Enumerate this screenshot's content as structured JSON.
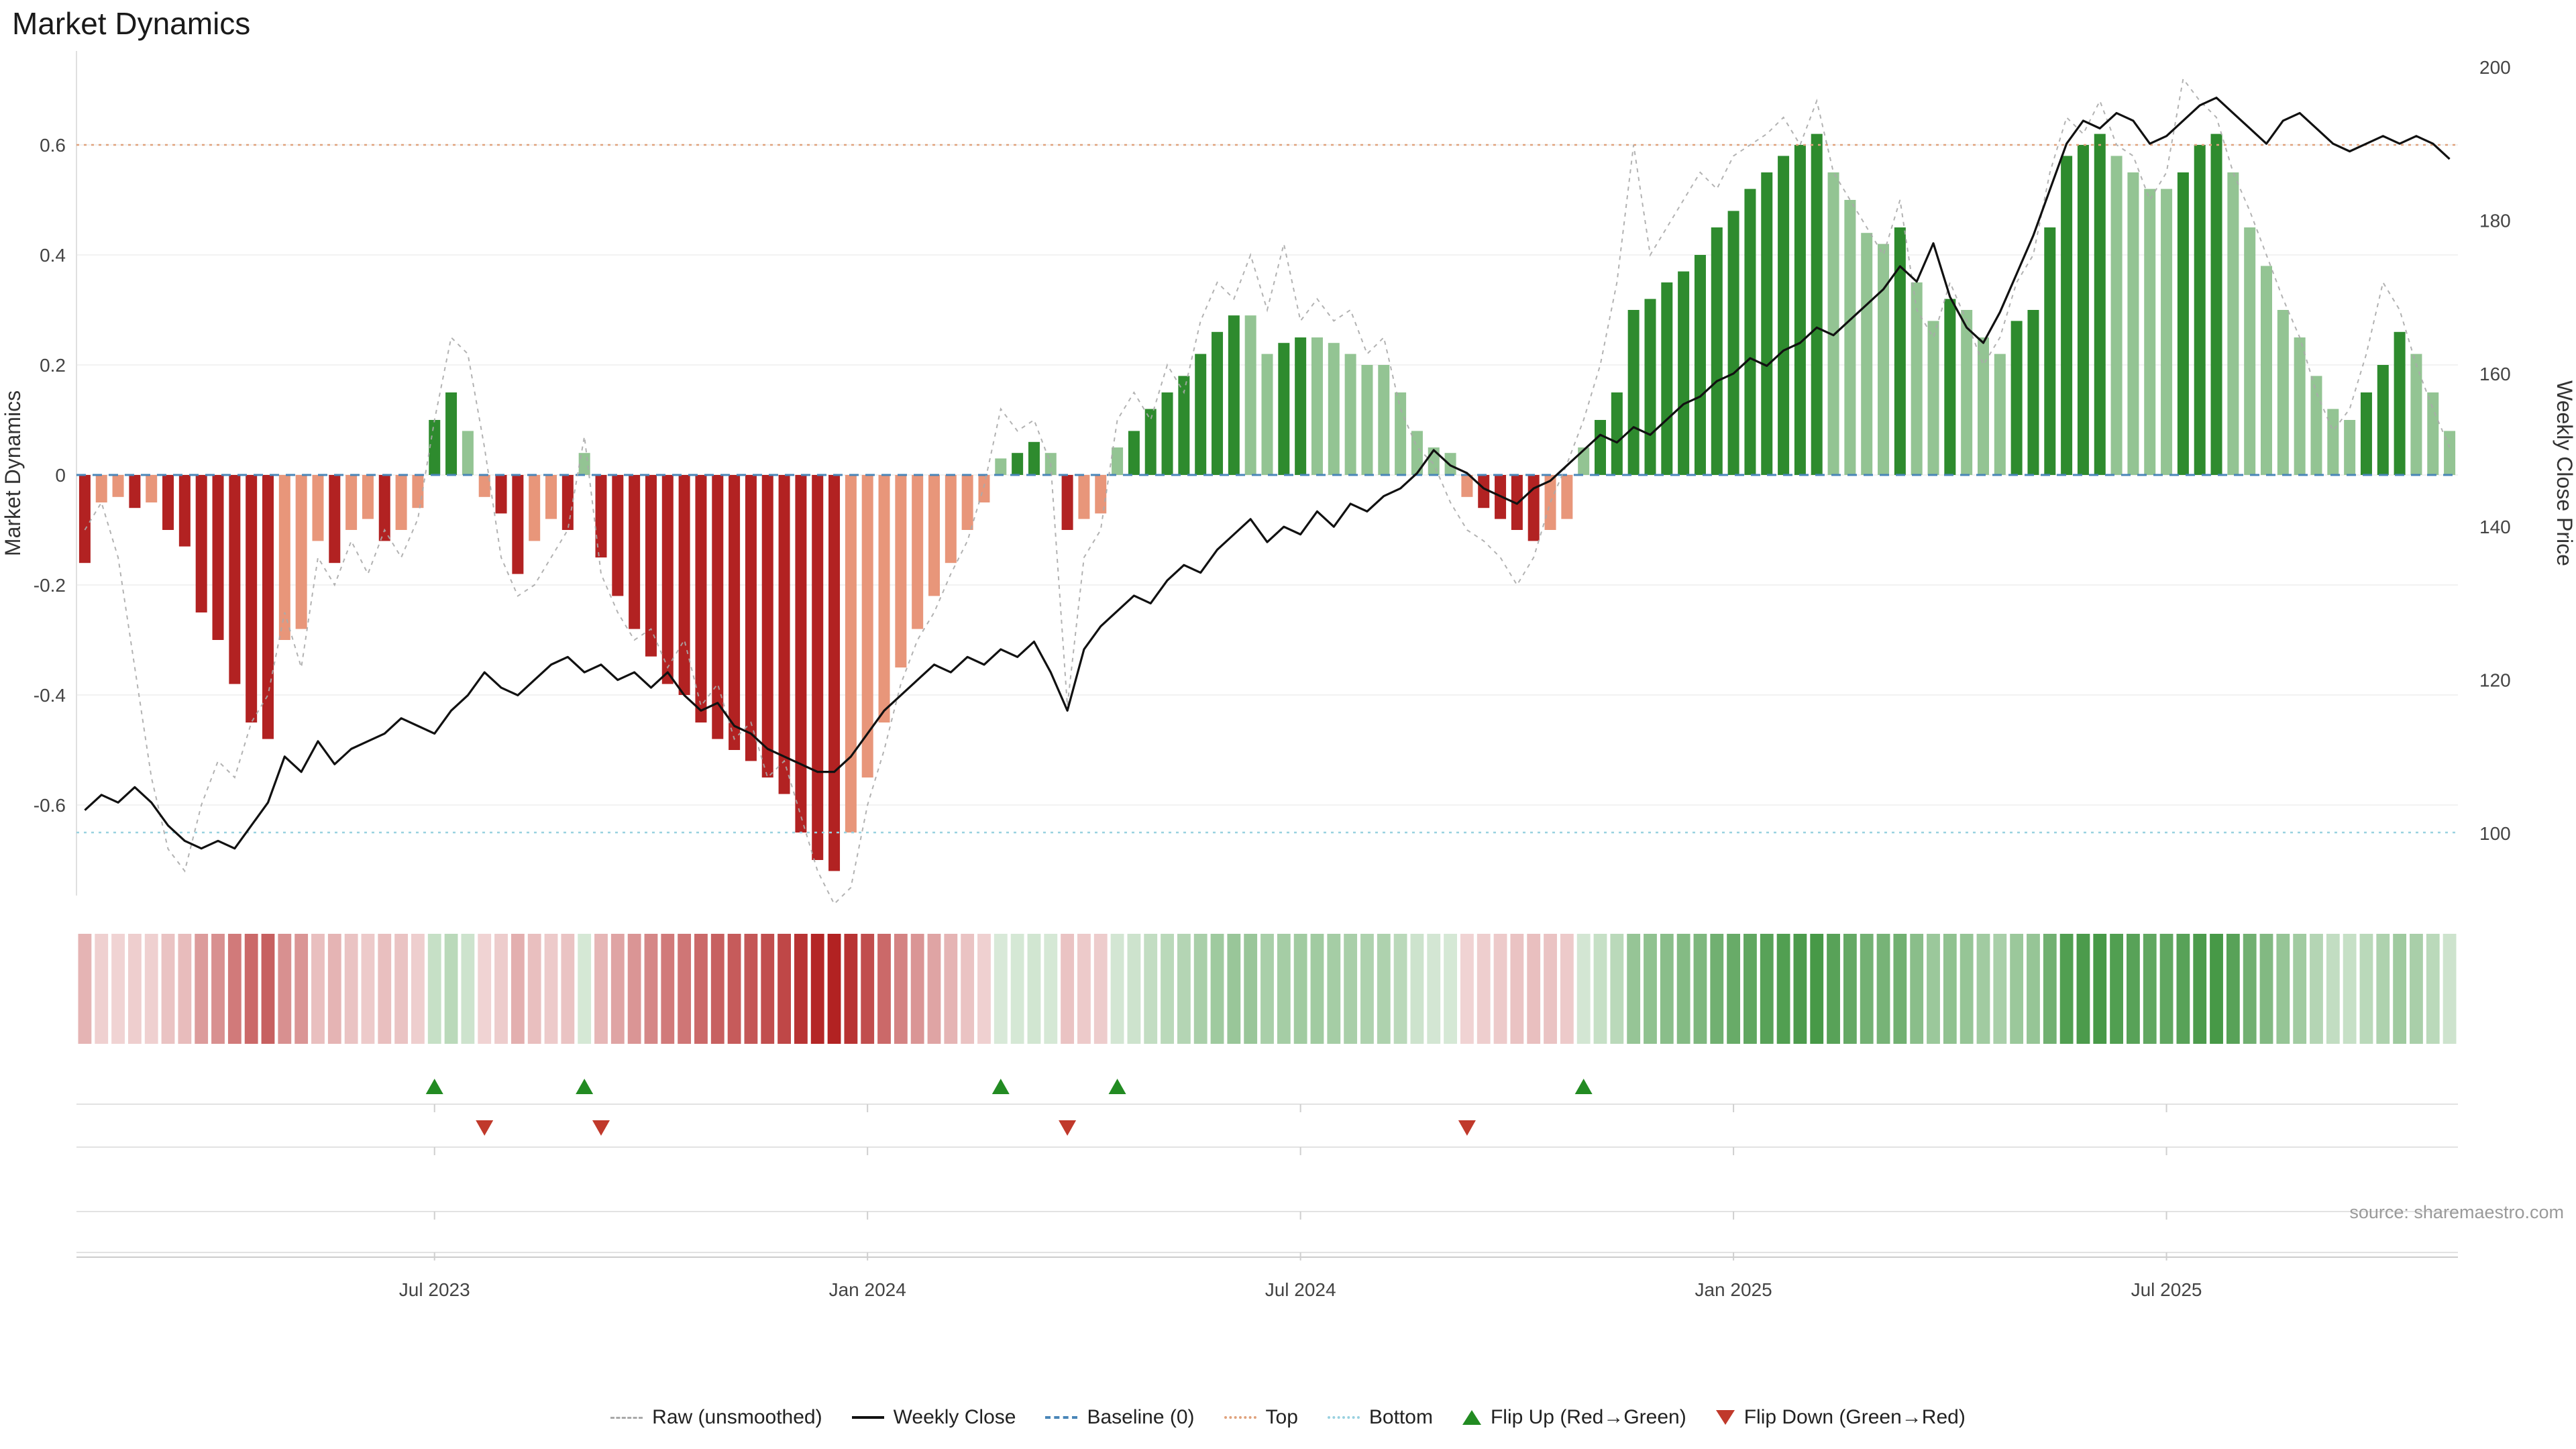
{
  "title": "Market Dynamics",
  "source": "source: sharemaestro.com",
  "axes": {
    "left_label": "Market Dynamics",
    "right_label": "Weekly Close Price",
    "left_tick_labels": [
      "0.6",
      "0.4",
      "0.2",
      "0",
      "-0.2",
      "-0.4",
      "-0.6"
    ],
    "left_tick_values": [
      0.6,
      0.4,
      0.2,
      0,
      -0.2,
      -0.4,
      -0.6
    ],
    "right_tick_labels": [
      "200",
      "180",
      "160",
      "140",
      "120",
      "100"
    ],
    "right_tick_values": [
      200,
      180,
      160,
      140,
      120,
      100
    ],
    "x_tick_labels": [
      "Jul 2023",
      "Jan 2024",
      "Jul 2024",
      "Jan 2025",
      "Jul 2025"
    ],
    "x_tick_indices": [
      21,
      47,
      73,
      99,
      125
    ]
  },
  "colors": {
    "bar_dark_red": "#b22222",
    "bar_light_red": "#e8967a",
    "bar_dark_green": "#2e8b2e",
    "bar_light_green": "#93c493",
    "baseline": "#4a86b8",
    "top": "#e0a27c",
    "bottom": "#99d1e0",
    "raw": "#aaaaaa",
    "price": "#111111",
    "flip_up": "#228b22",
    "flip_down": "#c0392b",
    "grid": "#f2f2f2",
    "spine": "#cccccc",
    "marker_row_line": "#e2e2e2",
    "tick_text": "#444444"
  },
  "legend": [
    {
      "label": "Raw (unsmoothed)",
      "swatch": "sw-raw"
    },
    {
      "label": "Weekly Close",
      "swatch": "sw-solid"
    },
    {
      "label": "Baseline (0)",
      "swatch": "sw-dashblue"
    },
    {
      "label": "Top",
      "swatch": "sw-dotorange"
    },
    {
      "label": "Bottom",
      "swatch": "sw-dotcyan"
    },
    {
      "label": "Flip Up (Red→Green)",
      "swatch": "sw-triup"
    },
    {
      "label": "Flip Down (Green→Red)",
      "swatch": "sw-tridown"
    }
  ],
  "chart_data": {
    "type": "bar",
    "title": "Market Dynamics",
    "x_unit": "weekly",
    "n_points": 143,
    "xlabel": "",
    "ylabel_left": "Market Dynamics",
    "ylabel_right": "Weekly Close Price",
    "left_axis_range": [
      -0.77,
      0.77
    ],
    "right_axis_range": [
      92,
      202
    ],
    "grid": true,
    "legend_position": "bottom-center",
    "baselines": {
      "baseline": 0,
      "top": 0.6,
      "bottom": -0.65
    },
    "x_tick_labels": [
      "Jul 2023",
      "Jan 2024",
      "Jul 2024",
      "Jan 2025",
      "Jul 2025"
    ],
    "x_tick_indices": [
      21,
      47,
      73,
      99,
      125
    ],
    "series": [
      {
        "name": "Market Dynamics (bars)",
        "type": "bar",
        "axis": "left",
        "values": [
          -0.16,
          -0.05,
          -0.04,
          -0.06,
          -0.05,
          -0.1,
          -0.13,
          -0.25,
          -0.3,
          -0.38,
          -0.45,
          -0.48,
          -0.3,
          -0.28,
          -0.12,
          -0.16,
          -0.1,
          -0.08,
          -0.12,
          -0.1,
          -0.06,
          0.1,
          0.15,
          0.08,
          -0.04,
          -0.07,
          -0.18,
          -0.12,
          -0.08,
          -0.1,
          0.04,
          -0.15,
          -0.22,
          -0.28,
          -0.33,
          -0.38,
          -0.4,
          -0.45,
          -0.48,
          -0.5,
          -0.52,
          -0.55,
          -0.58,
          -0.65,
          -0.7,
          -0.72,
          -0.65,
          -0.55,
          -0.45,
          -0.35,
          -0.28,
          -0.22,
          -0.16,
          -0.1,
          -0.05,
          0.03,
          0.04,
          0.06,
          0.04,
          -0.1,
          -0.08,
          -0.07,
          0.05,
          0.08,
          0.12,
          0.15,
          0.18,
          0.22,
          0.26,
          0.29,
          0.29,
          0.22,
          0.24,
          0.25,
          0.25,
          0.24,
          0.22,
          0.2,
          0.2,
          0.15,
          0.08,
          0.05,
          0.04,
          -0.04,
          -0.06,
          -0.08,
          -0.1,
          -0.12,
          -0.1,
          -0.08,
          0.05,
          0.1,
          0.15,
          0.3,
          0.32,
          0.35,
          0.37,
          0.4,
          0.45,
          0.48,
          0.52,
          0.55,
          0.58,
          0.6,
          0.62,
          0.55,
          0.5,
          0.44,
          0.42,
          0.45,
          0.35,
          0.28,
          0.32,
          0.3,
          0.25,
          0.22,
          0.28,
          0.3,
          0.45,
          0.58,
          0.6,
          0.62,
          0.58,
          0.55,
          0.52,
          0.52,
          0.55,
          0.6,
          0.62,
          0.55,
          0.45,
          0.38,
          0.3,
          0.25,
          0.18,
          0.12,
          0.1,
          0.15,
          0.2,
          0.26,
          0.22,
          0.15,
          0.08
        ]
      },
      {
        "name": "Raw (unsmoothed)",
        "type": "line",
        "axis": "left",
        "values": [
          -0.1,
          -0.05,
          -0.15,
          -0.35,
          -0.55,
          -0.68,
          -0.72,
          -0.6,
          -0.52,
          -0.55,
          -0.45,
          -0.4,
          -0.25,
          -0.35,
          -0.15,
          -0.2,
          -0.12,
          -0.18,
          -0.1,
          -0.15,
          -0.08,
          0.1,
          0.25,
          0.22,
          0.05,
          -0.15,
          -0.22,
          -0.2,
          -0.15,
          -0.1,
          0.07,
          -0.18,
          -0.25,
          -0.3,
          -0.28,
          -0.35,
          -0.3,
          -0.42,
          -0.38,
          -0.48,
          -0.45,
          -0.55,
          -0.52,
          -0.62,
          -0.72,
          -0.78,
          -0.75,
          -0.6,
          -0.5,
          -0.38,
          -0.3,
          -0.25,
          -0.18,
          -0.12,
          -0.02,
          0.12,
          0.08,
          0.1,
          0.02,
          -0.42,
          -0.15,
          -0.1,
          0.1,
          0.15,
          0.1,
          0.2,
          0.15,
          0.28,
          0.35,
          0.32,
          0.4,
          0.3,
          0.42,
          0.28,
          0.32,
          0.28,
          0.3,
          0.22,
          0.25,
          0.12,
          0.05,
          0.02,
          -0.05,
          -0.1,
          -0.12,
          -0.15,
          -0.2,
          -0.15,
          -0.05,
          0.02,
          0.1,
          0.2,
          0.35,
          0.6,
          0.4,
          0.45,
          0.5,
          0.55,
          0.52,
          0.58,
          0.6,
          0.62,
          0.65,
          0.6,
          0.68,
          0.55,
          0.5,
          0.45,
          0.4,
          0.5,
          0.3,
          0.25,
          0.35,
          0.28,
          0.2,
          0.25,
          0.35,
          0.4,
          0.55,
          0.65,
          0.62,
          0.68,
          0.6,
          0.58,
          0.5,
          0.55,
          0.72,
          0.68,
          0.65,
          0.55,
          0.48,
          0.4,
          0.32,
          0.25,
          0.15,
          0.08,
          0.12,
          0.22,
          0.35,
          0.3,
          0.2,
          0.12,
          0.05
        ]
      },
      {
        "name": "Weekly Close",
        "type": "line",
        "axis": "right",
        "values": [
          103,
          105,
          104,
          106,
          104,
          101,
          99,
          98,
          99,
          98,
          101,
          104,
          110,
          108,
          112,
          109,
          111,
          112,
          113,
          115,
          114,
          113,
          116,
          118,
          121,
          119,
          118,
          120,
          122,
          123,
          121,
          122,
          120,
          121,
          119,
          121,
          118,
          116,
          117,
          114,
          113,
          111,
          110,
          109,
          108,
          108,
          110,
          113,
          116,
          118,
          120,
          122,
          121,
          123,
          122,
          124,
          123,
          125,
          121,
          116,
          124,
          127,
          129,
          131,
          130,
          133,
          135,
          134,
          137,
          139,
          141,
          138,
          140,
          139,
          142,
          140,
          143,
          142,
          144,
          145,
          147,
          150,
          148,
          147,
          145,
          144,
          143,
          145,
          146,
          148,
          150,
          152,
          151,
          153,
          152,
          154,
          156,
          157,
          159,
          160,
          162,
          161,
          163,
          164,
          166,
          165,
          167,
          169,
          171,
          174,
          172,
          177,
          170,
          166,
          164,
          168,
          173,
          178,
          184,
          190,
          193,
          192,
          194,
          193,
          190,
          191,
          193,
          195,
          196,
          194,
          192,
          190,
          193,
          194,
          192,
          190,
          189,
          190,
          191,
          190,
          191,
          190,
          188
        ]
      }
    ],
    "flip_up_indices": [
      21,
      30,
      55,
      62,
      90
    ],
    "flip_down_indices": [
      24,
      31,
      59,
      83
    ]
  }
}
